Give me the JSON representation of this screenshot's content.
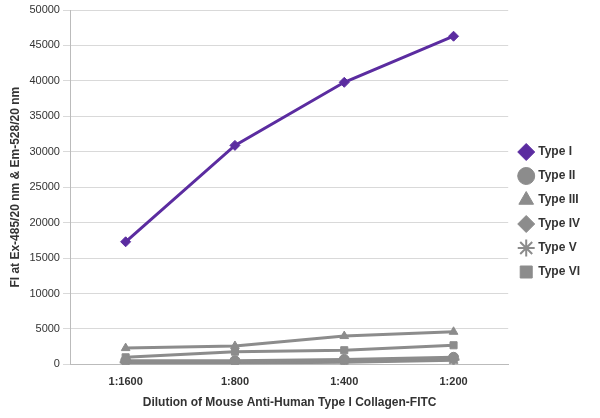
{
  "chart_data": {
    "type": "line",
    "x_label": "Dilution of Mouse Anti-Human Type I Collagen-FITC",
    "y_label": "FI at Ex-485/20 nm & Em-528/20 nm",
    "categories": [
      "1:1600",
      "1:800",
      "1:400",
      "1:200"
    ],
    "series": [
      {
        "name": "Type I",
        "color": "#5b2ca0",
        "marker": "diamond",
        "values": [
          17300,
          30900,
          39800,
          46300
        ]
      },
      {
        "name": "Type II",
        "color": "#8c8c8c",
        "marker": "circle",
        "values": [
          500,
          500,
          700,
          1000
        ]
      },
      {
        "name": "Type III",
        "color": "#8c8c8c",
        "marker": "triangle",
        "values": [
          2300,
          2600,
          4000,
          4600
        ]
      },
      {
        "name": "Type IV",
        "color": "#8c8c8c",
        "marker": "diamond",
        "values": [
          200,
          200,
          300,
          600
        ]
      },
      {
        "name": "Type V",
        "color": "#8c8c8c",
        "marker": "star",
        "values": [
          300,
          300,
          400,
          700
        ]
      },
      {
        "name": "Type VI",
        "color": "#8c8c8c",
        "marker": "square",
        "values": [
          1000,
          1800,
          2000,
          2700
        ]
      }
    ],
    "ylim": [
      0,
      50000
    ],
    "yticks": [
      0,
      5000,
      10000,
      15000,
      20000,
      25000,
      30000,
      35000,
      40000,
      45000,
      50000
    ],
    "grid": true,
    "legend": "right"
  }
}
